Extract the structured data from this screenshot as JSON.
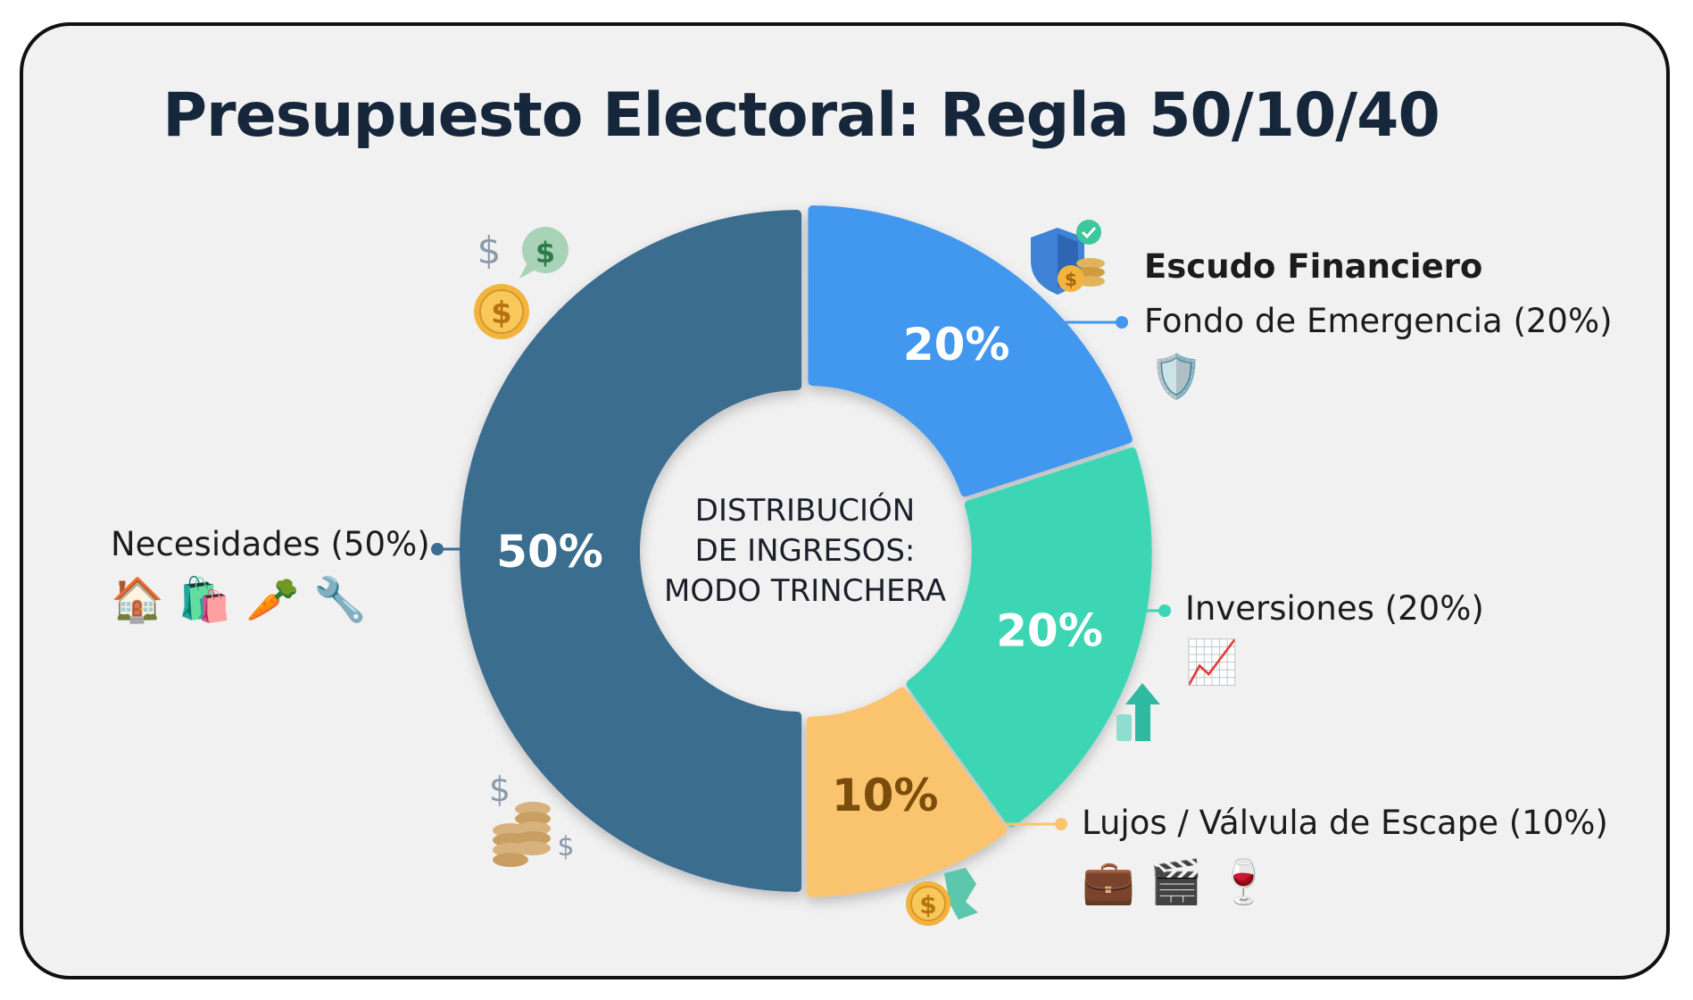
{
  "title": "Presupuesto Electoral: Regla 50/10/40",
  "chart_data": {
    "type": "pie",
    "title": "Presupuesto Electoral: Regla 50/10/40",
    "center_label": [
      "DISTRIBUCIÓN",
      "DE INGRESOS:",
      "MODO TRINCHERA"
    ],
    "group_label": "Escudo Financiero",
    "slices": [
      {
        "label": "Necesidades (50%)",
        "value": 50,
        "display": "50%",
        "color": "#3a6d8f",
        "text_color": "#ffffff"
      },
      {
        "label": "Fondo de Emergencia (20%)",
        "value": 20,
        "display": "20%",
        "color": "#4397ee",
        "text_color": "#ffffff"
      },
      {
        "label": "Inversiones (20%)",
        "value": 20,
        "display": "20%",
        "color": "#3dd6b5",
        "text_color": "#ffffff"
      },
      {
        "label": "Lujos / Válvula de Escape (10%)",
        "value": 10,
        "display": "10%",
        "color": "#fac36e",
        "text_color": "#7b4d0a"
      }
    ]
  },
  "icons": {
    "necesidades": [
      "house-icon",
      "grocery-bag-icon",
      "carrot-icon",
      "tools-building-icon"
    ],
    "emergencia": [
      "shield-icon"
    ],
    "inversiones": [
      "chart-increasing-icon"
    ],
    "lujos": [
      "suitcase-icon",
      "clapper-board-icon",
      "wine-glass-icon"
    ],
    "decorative": [
      "dollar-sign-icon",
      "dollar-bubble-icon",
      "gold-coin-icon",
      "coin-stack-icon",
      "shield-coins-icon",
      "growth-arrow-icon",
      "coin-icon"
    ]
  }
}
